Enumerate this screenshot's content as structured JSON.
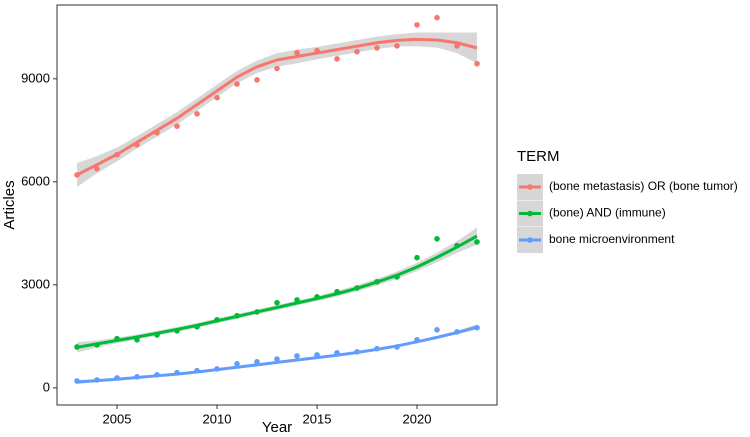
{
  "chart_data": {
    "type": "scatter_smooth",
    "x_label": "Year",
    "y_label": "Articles",
    "legend_title": "TERM",
    "legend_position": "right",
    "grid": false,
    "x": [
      2003,
      2004,
      2005,
      2006,
      2007,
      2008,
      2009,
      2010,
      2011,
      2012,
      2013,
      2014,
      2015,
      2016,
      2017,
      2018,
      2019,
      2020,
      2021,
      2022,
      2023
    ],
    "xlim": [
      2002,
      2024
    ],
    "xticks": [
      2005,
      2010,
      2015,
      2020
    ],
    "ylim": [
      -500,
      11150
    ],
    "yticks": [
      0,
      3000,
      6000,
      9000
    ],
    "band_color": "#bdbdbd",
    "series": [
      {
        "name": "(bone metastasis) OR (bone tumor)",
        "color": "#F8766D",
        "values": [
          6200,
          6380,
          6790,
          7080,
          7430,
          7620,
          7980,
          8450,
          8850,
          8970,
          9300,
          9760,
          9820,
          9580,
          9790,
          9900,
          9960,
          10570,
          10780,
          9960,
          9440
        ],
        "fit": [
          6200,
          6500,
          6800,
          7150,
          7500,
          7850,
          8250,
          8650,
          9050,
          9350,
          9550,
          9650,
          9750,
          9850,
          9950,
          10050,
          10120,
          10150,
          10130,
          10050,
          9900
        ],
        "fit_se": [
          350,
          250,
          200,
          180,
          180,
          180,
          180,
          180,
          180,
          180,
          200,
          200,
          180,
          180,
          180,
          180,
          180,
          200,
          220,
          300,
          450
        ]
      },
      {
        "name": "(bone) AND (immune)",
        "color": "#00BA38",
        "values": [
          1190,
          1250,
          1430,
          1400,
          1540,
          1660,
          1780,
          1980,
          2100,
          2210,
          2480,
          2560,
          2650,
          2800,
          2910,
          3090,
          3230,
          3790,
          4340,
          4140,
          4250
        ],
        "fit": [
          1180,
          1280,
          1380,
          1480,
          1590,
          1700,
          1820,
          1950,
          2080,
          2210,
          2340,
          2470,
          2600,
          2740,
          2900,
          3080,
          3280,
          3520,
          3800,
          4100,
          4420
        ],
        "fit_se": [
          150,
          100,
          80,
          70,
          70,
          70,
          70,
          70,
          70,
          70,
          70,
          70,
          70,
          80,
          90,
          100,
          110,
          120,
          140,
          170,
          250
        ]
      },
      {
        "name": "bone microenvironment",
        "color": "#619CFF",
        "values": [
          200,
          230,
          290,
          320,
          380,
          440,
          500,
          550,
          700,
          760,
          840,
          930,
          960,
          1020,
          1050,
          1140,
          1190,
          1400,
          1690,
          1630,
          1750
        ],
        "fit": [
          170,
          210,
          250,
          300,
          350,
          400,
          460,
          530,
          600,
          670,
          740,
          810,
          880,
          950,
          1030,
          1120,
          1220,
          1340,
          1470,
          1610,
          1770
        ],
        "fit_se": [
          60,
          40,
          30,
          25,
          25,
          25,
          25,
          25,
          25,
          25,
          25,
          25,
          25,
          25,
          25,
          30,
          30,
          35,
          40,
          50,
          80
        ]
      }
    ]
  }
}
